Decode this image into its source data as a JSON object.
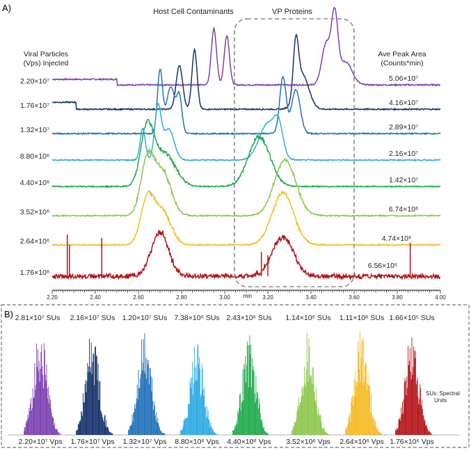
{
  "panel_a": {
    "label": "A)",
    "header_left": "Host Cell Contaminants",
    "header_right": "VP Proteins",
    "left_title_line1": "Viral Particles",
    "left_title_line2": "(Vps) Injected",
    "right_title_line1": "Ave Peak Area",
    "right_title_line2": "(Counts*min)"
  },
  "panel_b": {
    "label": "B)",
    "note_line1": "SUs: Spectral",
    "note_line2": "Units"
  },
  "colors": {
    "purple": "#7a3eb1",
    "navy": "#14306a",
    "blue": "#1f70b8",
    "lightblue": "#2aaae2",
    "green": "#1ea848",
    "lightgreen": "#8cc64a",
    "yellow": "#f5b820",
    "red": "#b31217",
    "box": "#888888"
  },
  "chart_data": [
    {
      "type": "line",
      "title": "",
      "xlabel": "min",
      "ylabel": "",
      "xlim": [
        2.2,
        4.0
      ],
      "xticks": [
        "2.20",
        "2.40",
        "2.60",
        "2.80",
        "3.00",
        "3.20",
        "3.40",
        "3.60",
        "3.80",
        "4.00"
      ],
      "regions": [
        {
          "label": "Host Cell Contaminants",
          "x_center": 2.8
        },
        {
          "label": "VP Proteins",
          "x_range": [
            3.2,
            3.6
          ]
        }
      ],
      "series": [
        {
          "color": "purple",
          "vps_injected": "2.20×10⁷",
          "ave_peak_area": "5.06×10⁷",
          "peaks": [
            {
              "x": 2.95,
              "h": 0.85,
              "w": 0.012
            },
            {
              "x": 3.01,
              "h": 0.75,
              "w": 0.012
            },
            {
              "x": 3.47,
              "h": 0.62,
              "w": 0.02
            },
            {
              "x": 3.51,
              "h": 1.0,
              "w": 0.015
            },
            {
              "x": 3.56,
              "h": 0.35,
              "w": 0.03
            }
          ]
        },
        {
          "color": "navy",
          "vps_injected": "1.76×10⁷",
          "ave_peak_area": "4.16×10⁷",
          "peaks": [
            {
              "x": 2.79,
              "h": 0.7,
              "w": 0.015
            },
            {
              "x": 2.86,
              "h": 0.95,
              "w": 0.012
            },
            {
              "x": 3.33,
              "h": 0.85,
              "w": 0.012
            },
            {
              "x": 3.36,
              "h": 0.55,
              "w": 0.03
            }
          ]
        },
        {
          "color": "blue",
          "vps_injected": "1.32×10⁷",
          "ave_peak_area": "2.89×10⁷",
          "peaks": [
            {
              "x": 2.7,
              "h": 1.0,
              "w": 0.012
            },
            {
              "x": 2.75,
              "h": 0.75,
              "w": 0.02
            },
            {
              "x": 2.79,
              "h": 0.55,
              "w": 0.012
            },
            {
              "x": 3.27,
              "h": 0.9,
              "w": 0.015
            },
            {
              "x": 3.33,
              "h": 0.7,
              "w": 0.02
            }
          ]
        },
        {
          "color": "lightblue",
          "vps_injected": "8.80×10⁶",
          "ave_peak_area": "2.16×10⁷",
          "peaks": [
            {
              "x": 2.62,
              "h": 0.6,
              "w": 0.012
            },
            {
              "x": 2.69,
              "h": 1.0,
              "w": 0.015
            },
            {
              "x": 2.74,
              "h": 0.6,
              "w": 0.025
            },
            {
              "x": 3.2,
              "h": 0.7,
              "w": 0.04
            },
            {
              "x": 3.25,
              "h": 0.5,
              "w": 0.02
            }
          ]
        },
        {
          "color": "green",
          "vps_injected": "4.40×10⁶",
          "ave_peak_area": "1.42×10⁷",
          "peaks": [
            {
              "x": 2.64,
              "h": 1.0,
              "w": 0.03
            },
            {
              "x": 2.72,
              "h": 0.6,
              "w": 0.05
            },
            {
              "x": 3.16,
              "h": 0.9,
              "w": 0.05
            }
          ]
        },
        {
          "color": "lightgreen",
          "vps_injected": "3.52×10⁶",
          "ave_peak_area": "6.74×10⁶",
          "peaks": [
            {
              "x": 2.64,
              "h": 0.95,
              "w": 0.03
            },
            {
              "x": 2.71,
              "h": 0.8,
              "w": 0.04
            },
            {
              "x": 3.28,
              "h": 1.0,
              "w": 0.05
            }
          ]
        },
        {
          "color": "yellow",
          "vps_injected": "2.64×10⁶",
          "ave_peak_area": "4.74×10⁶",
          "peaks": [
            {
              "x": 2.64,
              "h": 0.85,
              "w": 0.03
            },
            {
              "x": 2.71,
              "h": 0.65,
              "w": 0.04
            },
            {
              "x": 3.27,
              "h": 1.0,
              "w": 0.05
            }
          ]
        },
        {
          "color": "red",
          "vps_injected": "1.76×10⁶",
          "ave_peak_area": "6.56×10⁵",
          "peaks": [
            {
              "x": 2.7,
              "h": 0.9,
              "w": 0.04
            },
            {
              "x": 3.27,
              "h": 0.8,
              "w": 0.05
            }
          ]
        }
      ]
    },
    {
      "type": "bar",
      "title": "",
      "xlabel": "",
      "ylabel": "",
      "series": [
        {
          "color": "purple",
          "spectral_units": "2.81×10⁷ SUs",
          "vps_label": "2.20×10⁷ Vps",
          "relative_height": 1.0
        },
        {
          "color": "navy",
          "spectral_units": "2.16×10⁷ SUs",
          "vps_label": "1.76×10⁷ Vps",
          "relative_height": 1.0
        },
        {
          "color": "blue",
          "spectral_units": "1.20×10⁷ SUs",
          "vps_label": "1.32×10⁷ Vps",
          "relative_height": 0.97
        },
        {
          "color": "lightblue",
          "spectral_units": "7.38×10⁶ SUs",
          "vps_label": "8.80×10⁶ Vps",
          "relative_height": 0.86
        },
        {
          "color": "green",
          "spectral_units": "2.43×10⁶ SUs",
          "vps_label": "4.40×10⁶ Vps",
          "relative_height": 0.96
        },
        {
          "color": "lightgreen",
          "spectral_units": "1.14×10⁶ SUs",
          "vps_label": "3.52×10⁶ Vps",
          "relative_height": 1.0
        },
        {
          "color": "yellow",
          "spectral_units": "1.11×10⁶ SUs",
          "vps_label": "2.64×10⁶ Vps",
          "relative_height": 1.0
        },
        {
          "color": "red",
          "spectral_units": "1.66×10⁵ SUs",
          "vps_label": "1.76×10⁶ Vps",
          "relative_height": 0.95
        }
      ]
    }
  ]
}
